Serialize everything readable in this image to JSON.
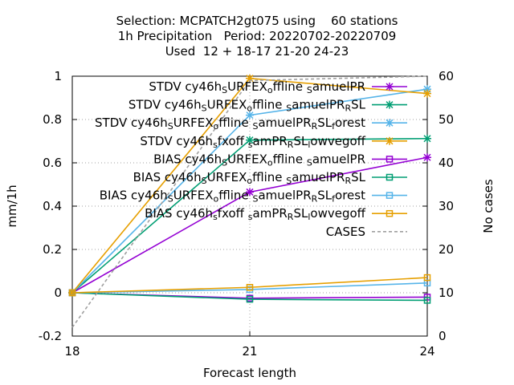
{
  "chart_data": {
    "type": "line",
    "title_lines": [
      "Selection: MCPATCH2gt075 using    60 stations",
      "1h Precipitation   Period: 20220702-20220709",
      "Used  12 + 18-17 21-20 24-23"
    ],
    "xlabel": "Forecast length",
    "ylabel": "mm/1h",
    "y2label": "No cases",
    "x": [
      18,
      21,
      24
    ],
    "xlim": [
      18,
      24
    ],
    "ylim": [
      -0.2,
      1.0
    ],
    "y2lim": [
      0,
      60
    ],
    "xticks": [
      "18",
      "21",
      "24"
    ],
    "yticks": [
      "-0.2",
      "0",
      "0.2",
      "0.4",
      "0.6",
      "0.8",
      "1"
    ],
    "y2ticks": [
      "0",
      "10",
      "20",
      "30",
      "40",
      "50",
      "60"
    ],
    "grid": true,
    "legend_position": "top-right",
    "series": [
      {
        "name": "STDV cy46h_S URFEX_o ffline _S amuelPR",
        "label_parts": [
          [
            "STDV cy46h",
            ""
          ],
          [
            "S",
            "sub"
          ],
          [
            "URFEX",
            ""
          ],
          [
            "o",
            "sub"
          ],
          [
            "ffline ",
            ""
          ],
          [
            "S",
            "sub"
          ],
          [
            "amuelPR",
            ""
          ]
        ],
        "values": [
          0.0,
          0.465,
          0.625
        ],
        "color": "#9400d3",
        "marker": "x",
        "axis": "y"
      },
      {
        "name": "STDV cy46h_S URFEX_o ffline _S amuelPR_R SL",
        "label_parts": [
          [
            "STDV cy46h",
            ""
          ],
          [
            "S",
            "sub"
          ],
          [
            "URFEX",
            ""
          ],
          [
            "o",
            "sub"
          ],
          [
            "ffline ",
            ""
          ],
          [
            "S",
            "sub"
          ],
          [
            "amuelPR",
            ""
          ],
          [
            "R",
            "sub"
          ],
          [
            "SL",
            ""
          ]
        ],
        "values": [
          0.0,
          0.705,
          0.712
        ],
        "color": "#009e73",
        "marker": "x",
        "axis": "y"
      },
      {
        "name": "STDV cy46h_S URFEX_o ffline _S amuelPR_R SL_f orest",
        "label_parts": [
          [
            "STDV cy46h",
            ""
          ],
          [
            "S",
            "sub"
          ],
          [
            "URFEX",
            ""
          ],
          [
            "o",
            "sub"
          ],
          [
            "ffline ",
            ""
          ],
          [
            "S",
            "sub"
          ],
          [
            "amuelPR",
            ""
          ],
          [
            "R",
            "sub"
          ],
          [
            "SL",
            ""
          ],
          [
            "f",
            "sub"
          ],
          [
            "orest",
            ""
          ]
        ],
        "values": [
          0.0,
          0.82,
          0.94
        ],
        "color": "#56b4e9",
        "marker": "x",
        "axis": "y"
      },
      {
        "name": "STDV cy46h_s fxoff _s amPR_R SL_l owvegoff",
        "label_parts": [
          [
            "STDV cy46h",
            ""
          ],
          [
            "s",
            "sub"
          ],
          [
            "fxoff ",
            ""
          ],
          [
            "s",
            "sub"
          ],
          [
            "amPR",
            ""
          ],
          [
            "R",
            "sub"
          ],
          [
            "SL",
            ""
          ],
          [
            "l",
            "sub"
          ],
          [
            "owvegoff",
            ""
          ]
        ],
        "values": [
          0.0,
          0.99,
          0.92
        ],
        "color": "#e69f00",
        "marker": "x",
        "axis": "y"
      },
      {
        "name": "BIAS cy46h_S URFEX_o ffline _S amuelPR",
        "label_parts": [
          [
            "BIAS cy46h",
            ""
          ],
          [
            "S",
            "sub"
          ],
          [
            "URFEX",
            ""
          ],
          [
            "o",
            "sub"
          ],
          [
            "ffline ",
            ""
          ],
          [
            "S",
            "sub"
          ],
          [
            "amuelPR",
            ""
          ]
        ],
        "values": [
          0.0,
          -0.025,
          -0.02
        ],
        "color": "#9400d3",
        "marker": "square",
        "axis": "y"
      },
      {
        "name": "BIAS cy46h_S URFEX_o ffline _S amuelPR_R SL",
        "label_parts": [
          [
            "BIAS cy46h",
            ""
          ],
          [
            "S",
            "sub"
          ],
          [
            "URFEX",
            ""
          ],
          [
            "o",
            "sub"
          ],
          [
            "ffline ",
            ""
          ],
          [
            "S",
            "sub"
          ],
          [
            "amuelPR",
            ""
          ],
          [
            "R",
            "sub"
          ],
          [
            "SL",
            ""
          ]
        ],
        "values": [
          0.0,
          -0.03,
          -0.035
        ],
        "color": "#009e73",
        "marker": "square",
        "axis": "y"
      },
      {
        "name": "BIAS cy46h_S URFEX_o ffline _S amuelPR_R SL_f orest",
        "label_parts": [
          [
            "BIAS cy46h",
            ""
          ],
          [
            "S",
            "sub"
          ],
          [
            "URFEX",
            ""
          ],
          [
            "o",
            "sub"
          ],
          [
            "ffline ",
            ""
          ],
          [
            "S",
            "sub"
          ],
          [
            "amuelPR",
            ""
          ],
          [
            "R",
            "sub"
          ],
          [
            "SL",
            ""
          ],
          [
            "f",
            "sub"
          ],
          [
            "orest",
            ""
          ]
        ],
        "values": [
          0.0,
          0.015,
          0.045
        ],
        "color": "#56b4e9",
        "marker": "square",
        "axis": "y"
      },
      {
        "name": "BIAS cy46h_s fxoff _s amPR_R SL_l owvegoff",
        "label_parts": [
          [
            "BIAS cy46h",
            ""
          ],
          [
            "s",
            "sub"
          ],
          [
            "fxoff ",
            ""
          ],
          [
            "s",
            "sub"
          ],
          [
            "amPR",
            ""
          ],
          [
            "R",
            "sub"
          ],
          [
            "SL",
            ""
          ],
          [
            "l",
            "sub"
          ],
          [
            "owvegoff",
            ""
          ]
        ],
        "values": [
          0.0,
          0.025,
          0.07
        ],
        "color": "#e69f00",
        "marker": "square",
        "axis": "y"
      },
      {
        "name": "CASES",
        "label_parts": [
          [
            "CASES",
            ""
          ]
        ],
        "values": [
          2,
          59,
          60
        ],
        "color": "#a0a0a0",
        "marker": "none",
        "dash": true,
        "axis": "y2"
      }
    ]
  }
}
